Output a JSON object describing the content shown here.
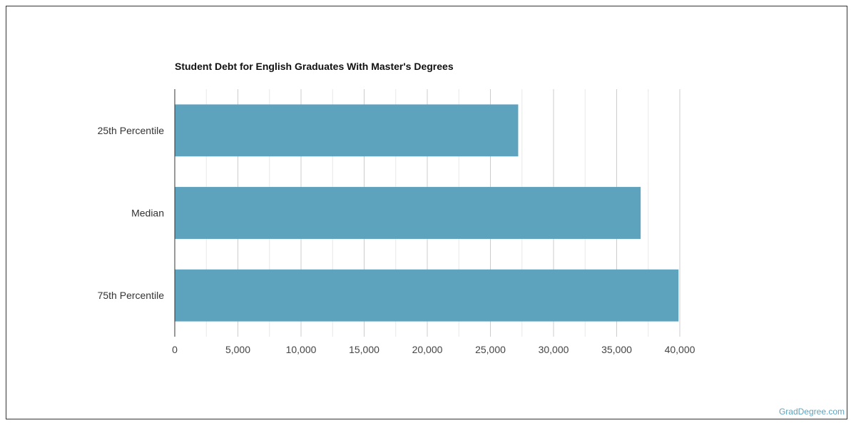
{
  "chart_data": {
    "type": "bar",
    "orientation": "horizontal",
    "title": "Student Debt for English Graduates With Master's Degrees",
    "categories": [
      "25th Percentile",
      "Median",
      "75th Percentile"
    ],
    "values": [
      27200,
      36900,
      39900
    ],
    "xlim": [
      0,
      40000
    ],
    "ticks": [
      "0",
      "5,000",
      "10,000",
      "15,000",
      "20,000",
      "25,000",
      "30,000",
      "35,000",
      "40,000"
    ],
    "grid": true,
    "bar_color": "#5ea3be"
  },
  "watermark": "GradDegree.com"
}
